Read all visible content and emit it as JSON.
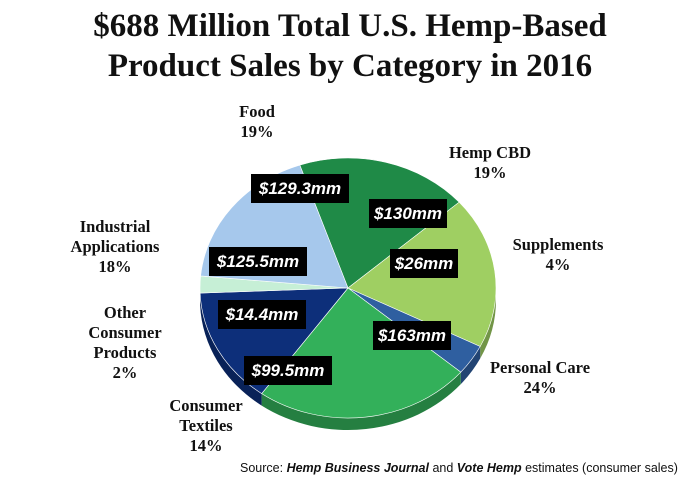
{
  "title_line1": "$688 Million Total U.S. Hemp-Based",
  "title_line2": "Product Sales by Category in 2016",
  "source": {
    "prefix": "Source: ",
    "pub1": "Hemp Business Journal",
    "and": " and ",
    "pub2": "Vote Hemp",
    "suffix": " estimates (consumer sales)"
  },
  "chart_data": {
    "type": "pie",
    "title": "$688 Million Total U.S. Hemp-Based Product Sales by Category in 2016",
    "unit": "$mm",
    "slices": [
      {
        "category": [
          "Food"
        ],
        "percent_label": "19%",
        "value": 129.3,
        "value_label": "$129.3mm",
        "color": "#1f8a47"
      },
      {
        "category": [
          "Hemp CBD"
        ],
        "percent_label": "19%",
        "value": 130,
        "value_label": "$130mm",
        "color": "#9fcf62"
      },
      {
        "category": [
          "Supplements"
        ],
        "percent_label": "4%",
        "value": 26,
        "value_label": "$26mm",
        "color": "#2f5fa0"
      },
      {
        "category": [
          "Personal Care"
        ],
        "percent_label": "24%",
        "value": 163,
        "value_label": "$163mm",
        "color": "#33b05a"
      },
      {
        "category": [
          "Consumer",
          "Textiles"
        ],
        "percent_label": "14%",
        "value": 99.5,
        "value_label": "$99.5mm",
        "color": "#0d2f7a"
      },
      {
        "category": [
          "Other",
          "Consumer",
          "Products"
        ],
        "percent_label": "2%",
        "value": 14.4,
        "value_label": "$14.4mm",
        "color": "#c6efd6"
      },
      {
        "category": [
          "Industrial",
          "Applications"
        ],
        "percent_label": "18%",
        "value": 125.5,
        "value_label": "$125.5mm",
        "color": "#a6c8ec"
      }
    ]
  }
}
